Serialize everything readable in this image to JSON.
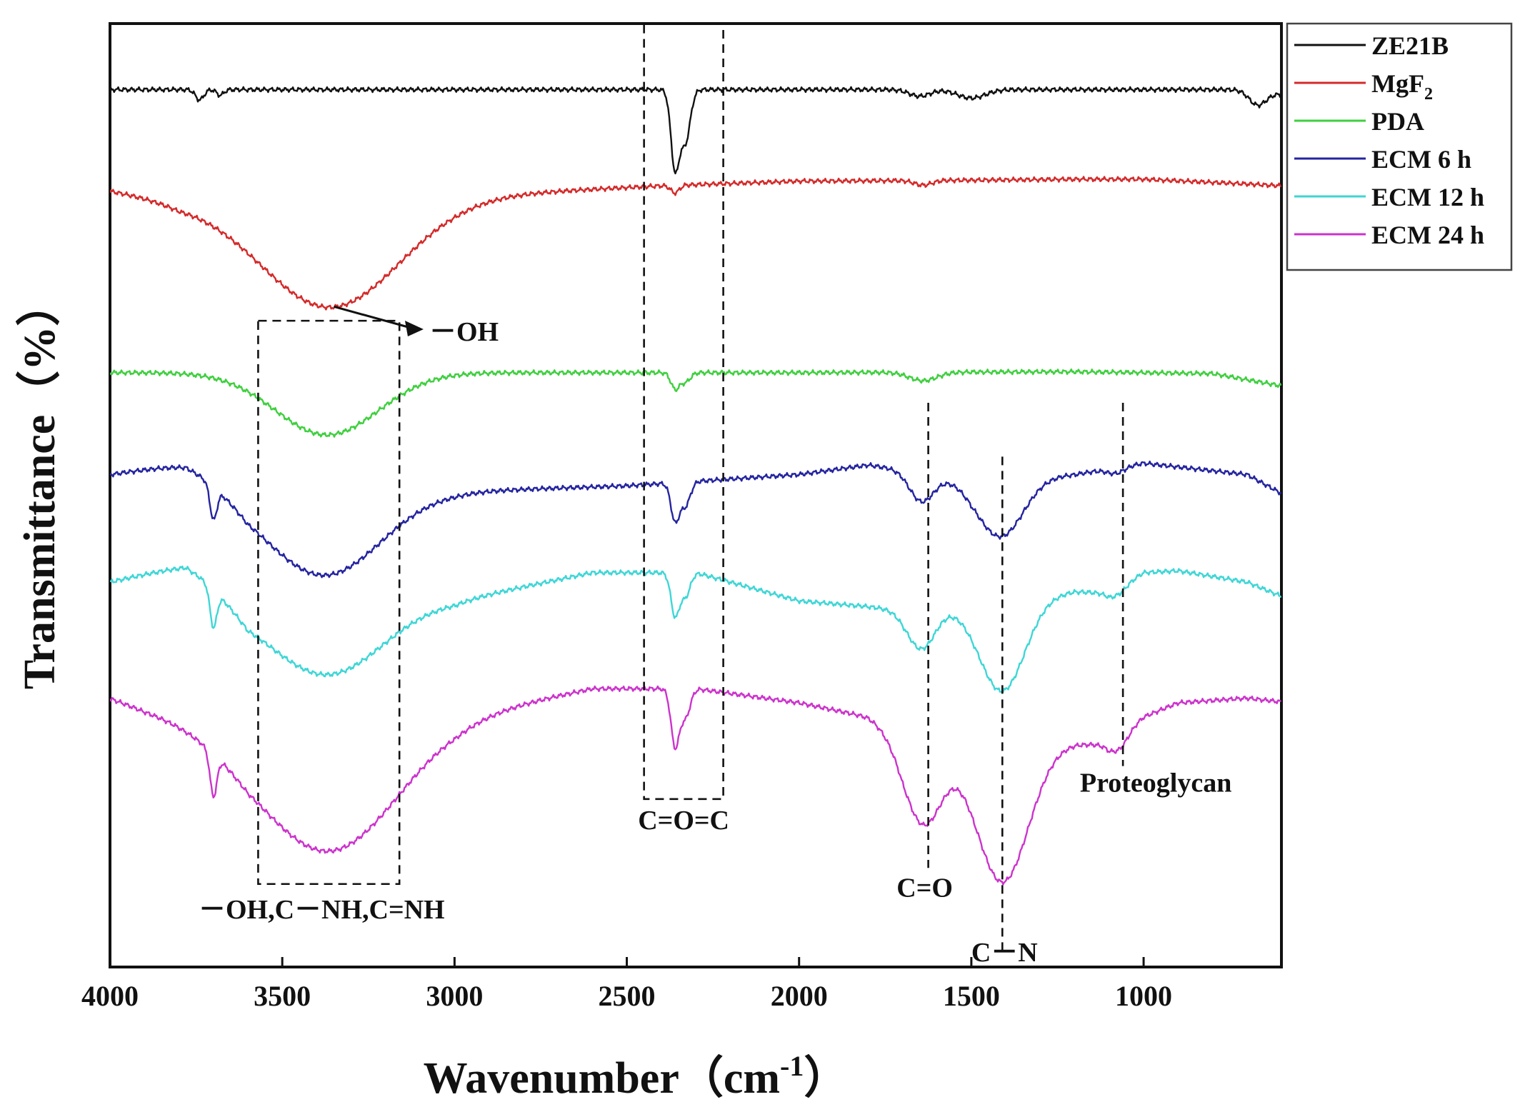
{
  "chart_data": {
    "type": "line",
    "title": "",
    "xlabel": "Wavenumber",
    "xlabel_unit": "cm",
    "xlabel_unit_exp": "-1",
    "ylabel": "Transmittance",
    "ylabel_unit": "%",
    "xlim": [
      4000,
      600
    ],
    "x_direction": "reversed",
    "xticks": [
      4000,
      3500,
      3000,
      2500,
      2000,
      1500,
      1000
    ],
    "yticks_shown": false,
    "grid": false,
    "legend_position": "top-right",
    "series": [
      {
        "name": "ZE21B",
        "color": "#111111",
        "offset": 0.93,
        "baseline": [
          [
            4000,
            0.0
          ],
          [
            3000,
            0.0
          ],
          [
            2500,
            0.0
          ],
          [
            2000,
            0.0
          ],
          [
            1500,
            0.0
          ],
          [
            1000,
            0.0
          ],
          [
            700,
            0.0
          ],
          [
            600,
            -0.005
          ]
        ],
        "bands": [
          [
            2360,
            0.083,
            12
          ],
          [
            2330,
            0.055,
            14
          ],
          [
            3740,
            0.011,
            12
          ],
          [
            3680,
            0.006,
            10
          ],
          [
            1650,
            0.007,
            30
          ],
          [
            1500,
            0.009,
            40
          ],
          [
            670,
            0.015,
            25
          ]
        ]
      },
      {
        "name": "MgF2",
        "name_base": "MgF",
        "name_sub": "2",
        "color": "#d42a2a",
        "offset": 0.823,
        "baseline": [
          [
            4000,
            0.0
          ],
          [
            3800,
            -0.012
          ],
          [
            3000,
            -0.006
          ],
          [
            2400,
            0.005
          ],
          [
            2000,
            0.01
          ],
          [
            1500,
            0.011
          ],
          [
            1200,
            0.012
          ],
          [
            1000,
            0.012
          ],
          [
            700,
            0.007
          ],
          [
            600,
            0.005
          ]
        ],
        "bands": [
          [
            3360,
            0.115,
            200
          ],
          [
            2360,
            0.008,
            12
          ],
          [
            1640,
            0.005,
            25
          ]
        ]
      },
      {
        "name": "PDA",
        "color": "#3fcf3f",
        "offset": 0.63,
        "baseline": [
          [
            4000,
            0.0
          ],
          [
            3700,
            0.0
          ],
          [
            2500,
            0.0
          ],
          [
            2000,
            0.0
          ],
          [
            1200,
            0.001
          ],
          [
            800,
            -0.001
          ],
          [
            600,
            -0.014
          ]
        ],
        "bands": [
          [
            3370,
            0.066,
            150
          ],
          [
            2360,
            0.017,
            12
          ],
          [
            2330,
            0.01,
            14
          ],
          [
            1640,
            0.009,
            40
          ]
        ]
      },
      {
        "name": "ECM 6 h",
        "color": "#2424a0",
        "offset": 0.522,
        "baseline": [
          [
            4000,
            0.0
          ],
          [
            3780,
            0.012
          ],
          [
            3720,
            0.004
          ],
          [
            3600,
            -0.016
          ],
          [
            3000,
            -0.018
          ],
          [
            2500,
            -0.012
          ],
          [
            2000,
            0.0
          ],
          [
            1800,
            0.01
          ],
          [
            1700,
            0.005
          ],
          [
            1500,
            -0.008
          ],
          [
            1200,
            0.0
          ],
          [
            1000,
            0.012
          ],
          [
            900,
            0.008
          ],
          [
            700,
            0.0
          ],
          [
            600,
            -0.02
          ]
        ],
        "bands": [
          [
            3380,
            0.09,
            165
          ],
          [
            3700,
            0.035,
            10
          ],
          [
            2360,
            0.04,
            12
          ],
          [
            2330,
            0.025,
            14
          ],
          [
            1645,
            0.03,
            35
          ],
          [
            1415,
            0.06,
            65
          ],
          [
            1080,
            0.006,
            25
          ]
        ]
      },
      {
        "name": "ECM 12 h",
        "color": "#3fd6d6",
        "offset": 0.408,
        "baseline": [
          [
            4000,
            0.0
          ],
          [
            3780,
            0.018
          ],
          [
            3720,
            0.006
          ],
          [
            3600,
            -0.025
          ],
          [
            3000,
            -0.02
          ],
          [
            2600,
            0.01
          ],
          [
            2300,
            0.01
          ],
          [
            2000,
            -0.02
          ],
          [
            1800,
            -0.026
          ],
          [
            1700,
            -0.03
          ],
          [
            1500,
            -0.025
          ],
          [
            1200,
            -0.01
          ],
          [
            1100,
            -0.012
          ],
          [
            1000,
            0.01
          ],
          [
            900,
            0.012
          ],
          [
            700,
            0.0
          ],
          [
            600,
            -0.015
          ]
        ],
        "bands": [
          [
            3370,
            0.075,
            160
          ],
          [
            3700,
            0.04,
            10
          ],
          [
            2360,
            0.045,
            12
          ],
          [
            2330,
            0.025,
            14
          ],
          [
            1645,
            0.042,
            40
          ],
          [
            1410,
            0.095,
            65
          ],
          [
            1075,
            0.007,
            25
          ]
        ]
      },
      {
        "name": "ECM 24 h",
        "color": "#cc33cc",
        "offset": 0.285,
        "baseline": [
          [
            4000,
            0.0
          ],
          [
            3900,
            -0.012
          ],
          [
            3750,
            -0.026
          ],
          [
            3600,
            -0.04
          ],
          [
            3000,
            -0.02
          ],
          [
            2600,
            0.01
          ],
          [
            2300,
            0.01
          ],
          [
            2000,
            -0.005
          ],
          [
            1800,
            -0.02
          ],
          [
            1700,
            -0.04
          ],
          [
            1500,
            -0.05
          ],
          [
            1300,
            -0.05
          ],
          [
            1200,
            -0.048
          ],
          [
            1100,
            -0.05
          ],
          [
            1000,
            -0.02
          ],
          [
            900,
            -0.005
          ],
          [
            700,
            0.0
          ],
          [
            600,
            -0.004
          ]
        ],
        "bands": [
          [
            3360,
            0.13,
            195
          ],
          [
            3700,
            0.045,
            10
          ],
          [
            2360,
            0.06,
            12
          ],
          [
            2330,
            0.03,
            14
          ],
          [
            1640,
            0.09,
            55
          ],
          [
            1410,
            0.145,
            75
          ],
          [
            1070,
            0.013,
            25
          ]
        ]
      }
    ],
    "annotations": [
      {
        "id": "oh",
        "text": "－OH",
        "arrow_from": [
          3350,
          0.7
        ],
        "arrow_to": [
          3090,
          0.676
        ]
      },
      {
        "id": "oh-nh-box",
        "text": "－OH,C－NH,C=NH",
        "x_range": [
          3570,
          3160
        ],
        "y_range": [
          0.088,
          0.685
        ],
        "style": "dashed-box"
      },
      {
        "id": "co2-box",
        "text": "C=O=C",
        "x_range": [
          2450,
          2220
        ],
        "y_range": [
          0.178,
          1.0
        ],
        "style": "dashed-box"
      },
      {
        "id": "c-o-line",
        "text": "C=O",
        "x": 1625,
        "y_range": [
          0.105,
          0.598
        ],
        "style": "dashed-line"
      },
      {
        "id": "c-n-line",
        "text": "C－N",
        "x": 1410,
        "y_range": [
          0.018,
          0.541
        ],
        "style": "dashed-line"
      },
      {
        "id": "proteo-line",
        "text": "Proteoglycan",
        "x": 1060,
        "y_range": [
          0.213,
          0.598
        ],
        "style": "dashed-line"
      }
    ]
  }
}
